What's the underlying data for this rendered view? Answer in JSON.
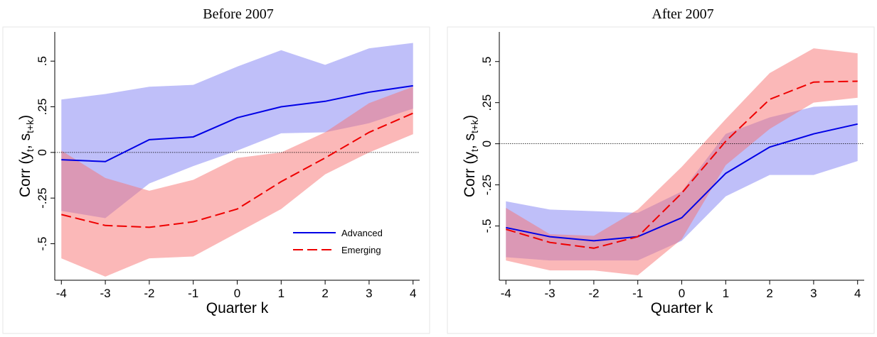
{
  "chart_data": [
    {
      "type": "line",
      "title": "Before 2007",
      "xlabel": "Quarter k",
      "ylabel": [
        "Corr (y",
        "t",
        ", s",
        "t+k",
        ")"
      ],
      "x": [
        -4,
        -3,
        -2,
        -1,
        0,
        1,
        2,
        3,
        4
      ],
      "xlim": [
        -4.15,
        4.15
      ],
      "xticks": [
        -4,
        -3,
        -2,
        -1,
        0,
        1,
        2,
        3,
        4
      ],
      "ylim": [
        -0.7,
        0.66
      ],
      "yticks": [
        {
          "value": -0.5,
          "label": "-.5"
        },
        {
          "value": -0.25,
          "label": "-.25"
        },
        0,
        {
          "value": 0.25,
          "label": ".25"
        },
        {
          "value": 0.5,
          "label": ".5"
        }
      ],
      "refline": 0,
      "legend": "lower right",
      "series": [
        {
          "name": "Advanced",
          "color": "#0000e6",
          "band_color": "#8080f4",
          "style": "solid",
          "values": [
            -0.04,
            -0.05,
            0.07,
            0.085,
            0.19,
            0.25,
            0.28,
            0.33,
            0.365
          ],
          "upper": [
            0.29,
            0.32,
            0.36,
            0.37,
            0.47,
            0.56,
            0.48,
            0.57,
            0.6
          ],
          "lower": [
            -0.32,
            -0.36,
            -0.17,
            -0.075,
            0.01,
            0.105,
            0.11,
            0.16,
            0.24
          ]
        },
        {
          "name": "Emerging",
          "color": "#ee0000",
          "band_color": "#f77272",
          "style": "dashed",
          "values": [
            -0.34,
            -0.4,
            -0.41,
            -0.38,
            -0.31,
            -0.16,
            -0.03,
            0.11,
            0.215
          ],
          "upper": [
            0.01,
            -0.14,
            -0.21,
            -0.15,
            -0.03,
            0.0,
            0.11,
            0.27,
            0.36
          ],
          "lower": [
            -0.58,
            -0.68,
            -0.58,
            -0.57,
            -0.44,
            -0.31,
            -0.12,
            0.0,
            0.1
          ]
        }
      ]
    },
    {
      "type": "line",
      "title": "After 2007",
      "xlabel": "Quarter k",
      "ylabel": [
        "Corr (y",
        "t",
        ", s",
        "t+k",
        ")"
      ],
      "x": [
        -4,
        -3,
        -2,
        -1,
        0,
        1,
        2,
        3,
        4
      ],
      "xlim": [
        -4.15,
        4.15
      ],
      "xticks": [
        -4,
        -3,
        -2,
        -1,
        0,
        1,
        2,
        3,
        4
      ],
      "ylim": [
        -0.83,
        0.68
      ],
      "yticks": [
        {
          "value": -0.5,
          "label": "-.5"
        },
        {
          "value": -0.25,
          "label": "-.25"
        },
        0,
        {
          "value": 0.25,
          "label": ".25"
        },
        {
          "value": 0.5,
          "label": ".5"
        }
      ],
      "refline": 0,
      "series": [
        {
          "color": "#0000e6",
          "band_color": "#8080f4",
          "style": "solid",
          "values": [
            -0.51,
            -0.565,
            -0.59,
            -0.565,
            -0.45,
            -0.18,
            -0.02,
            0.06,
            0.12
          ],
          "upper": [
            -0.35,
            -0.4,
            -0.41,
            -0.42,
            -0.29,
            0.06,
            0.16,
            0.225,
            0.235
          ],
          "lower": [
            -0.69,
            -0.71,
            -0.71,
            -0.71,
            -0.59,
            -0.32,
            -0.19,
            -0.19,
            -0.105
          ]
        },
        {
          "color": "#ee0000",
          "band_color": "#f77272",
          "style": "dashed",
          "values": [
            -0.52,
            -0.6,
            -0.635,
            -0.565,
            -0.3,
            0.015,
            0.27,
            0.375,
            0.38
          ],
          "upper": [
            -0.39,
            -0.55,
            -0.56,
            -0.4,
            -0.14,
            0.15,
            0.43,
            0.58,
            0.55
          ],
          "lower": [
            -0.71,
            -0.77,
            -0.77,
            -0.8,
            -0.58,
            -0.13,
            0.09,
            0.25,
            0.28
          ]
        }
      ]
    }
  ]
}
